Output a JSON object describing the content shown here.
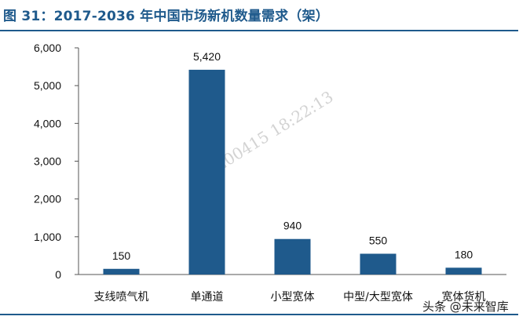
{
  "title": "图 31：2017-2036 年中国市场新机数量需求（架）",
  "watermark": "20200415 18:22:13",
  "source_mark": "头条 @未来智库",
  "colors": {
    "bar": "#1f5a8c",
    "title": "#1f5a8c"
  },
  "chart_data": {
    "type": "bar",
    "categories": [
      "支线喷气机",
      "单通道",
      "小型宽体",
      "中型/大型宽体",
      "宽体货机"
    ],
    "values": [
      150,
      5420,
      940,
      550,
      180
    ],
    "data_labels": [
      "150",
      "5,420",
      "940",
      "550",
      "180"
    ],
    "y_ticks": [
      0,
      1000,
      2000,
      3000,
      4000,
      5000,
      6000
    ],
    "y_tick_labels": [
      "0",
      "1,000",
      "2,000",
      "3,000",
      "4,000",
      "5,000",
      "6,000"
    ],
    "ylim": [
      0,
      6000
    ],
    "grid": false,
    "legend": "none"
  }
}
